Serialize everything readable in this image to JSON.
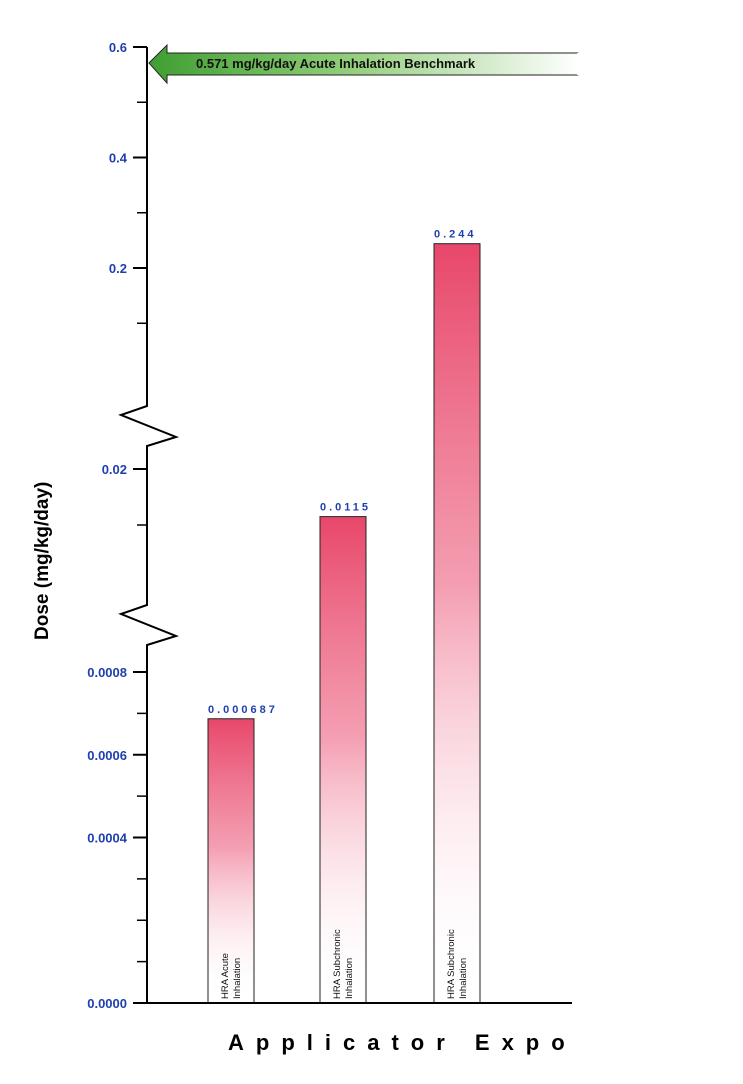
{
  "chart_data": {
    "type": "bar",
    "ylabel": "Dose (mg/kg/day)",
    "xlabel": "Applicator  Expo",
    "y_scale": "broken",
    "y_segments": [
      {
        "ticks": [
          "0.0000",
          "0.0004",
          "0.0006",
          "0.0008"
        ],
        "tick_values": [
          0,
          0.0004,
          0.0006,
          0.0008
        ],
        "range": [
          0,
          0.0009
        ]
      },
      {
        "ticks": [
          "0.02"
        ],
        "tick_values": [
          0.02
        ],
        "range": [
          0.01,
          0.03
        ]
      },
      {
        "ticks": [
          "0.2",
          "0.4",
          "0.6"
        ],
        "tick_values": [
          0.2,
          0.4,
          0.6
        ],
        "range": [
          0.1,
          0.6
        ]
      }
    ],
    "bars": [
      {
        "category": "HRA Acute Inhalation",
        "label_lines": [
          "HRA Acute",
          "Inhalation"
        ],
        "value": 0.000687,
        "value_label": "0.000687"
      },
      {
        "category": "HRA Subchronic Inhalation",
        "label_lines": [
          "HRA Subchronic",
          "Inhalation"
        ],
        "value": 0.0115,
        "value_label": "0.0115"
      },
      {
        "category": "HRA Subchronic Inhalation",
        "label_lines": [
          "HRA Subchronic",
          "Inhalation"
        ],
        "value": 0.244,
        "value_label": "0.244"
      }
    ],
    "benchmark": {
      "value": 0.571,
      "label": "0.571 mg/kg/day Acute Inhalation Benchmark"
    },
    "colors": {
      "bar": "#e8476a",
      "tick_label": "#1f3fae",
      "benchmark": "#4caa3c"
    },
    "grid": false
  }
}
